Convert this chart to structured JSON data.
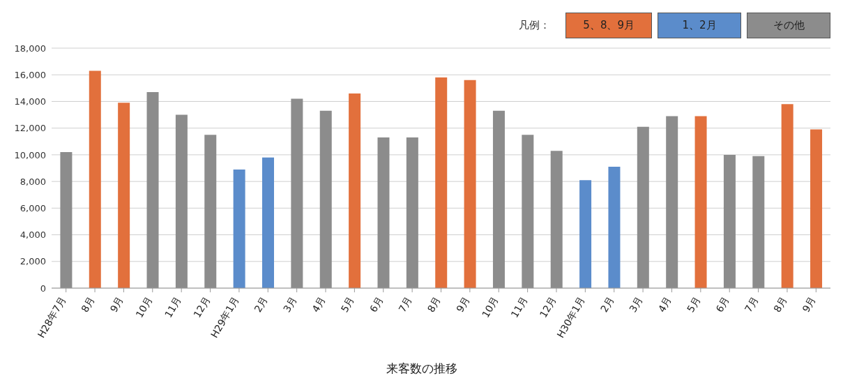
{
  "chart_data": {
    "type": "bar",
    "title": "来客数の推移",
    "stacked": true,
    "legend": "top right",
    "legend_title": "凡例：",
    "categories": [
      "H28年7月",
      "8月",
      "9月",
      "10月",
      "11月",
      "12月",
      "H29年1月",
      "2月",
      "3月",
      "4月",
      "5月",
      "6月",
      "7月",
      "8月",
      "9月",
      "10月",
      "11月",
      "12月",
      "H30年1月",
      "2月",
      "3月",
      "4月",
      "5月",
      "6月",
      "7月",
      "8月",
      "9月"
    ],
    "series": [
      {
        "name": "5、8、9月",
        "color": "#e2703c",
        "values": [
          null,
          16300,
          13900,
          null,
          null,
          null,
          null,
          null,
          null,
          null,
          14600,
          null,
          null,
          15800,
          15600,
          null,
          null,
          null,
          null,
          null,
          null,
          null,
          12900,
          null,
          null,
          13800,
          11900
        ]
      },
      {
        "name": "1、2月",
        "color": "#5b8ccb",
        "values": [
          null,
          null,
          null,
          null,
          null,
          null,
          8900,
          9800,
          null,
          null,
          null,
          null,
          null,
          null,
          null,
          null,
          null,
          null,
          8100,
          9100,
          null,
          null,
          null,
          null,
          null,
          null,
          null
        ]
      },
      {
        "name": "その他",
        "color": "#8c8c8c",
        "values": [
          10200,
          null,
          null,
          14700,
          13000,
          11500,
          null,
          null,
          14200,
          13300,
          null,
          11300,
          11300,
          null,
          null,
          13300,
          11500,
          10300,
          null,
          null,
          12100,
          12900,
          null,
          10000,
          9900,
          null,
          null
        ]
      }
    ],
    "ylim": [
      0,
      18000
    ],
    "yticks": [
      0,
      {
        "value": 2000,
        "label": "2,000"
      },
      {
        "value": 4000,
        "label": "4,000"
      },
      {
        "value": 6000,
        "label": "6,000"
      },
      {
        "value": 8000,
        "label": "8,000"
      },
      {
        "value": 10000,
        "label": "10,000"
      },
      {
        "value": 12000,
        "label": "12,000"
      },
      {
        "value": 14000,
        "label": "14,000"
      },
      {
        "value": 16000,
        "label": "16,000"
      },
      {
        "value": 18000,
        "label": "18,000"
      }
    ],
    "grid": "y"
  }
}
